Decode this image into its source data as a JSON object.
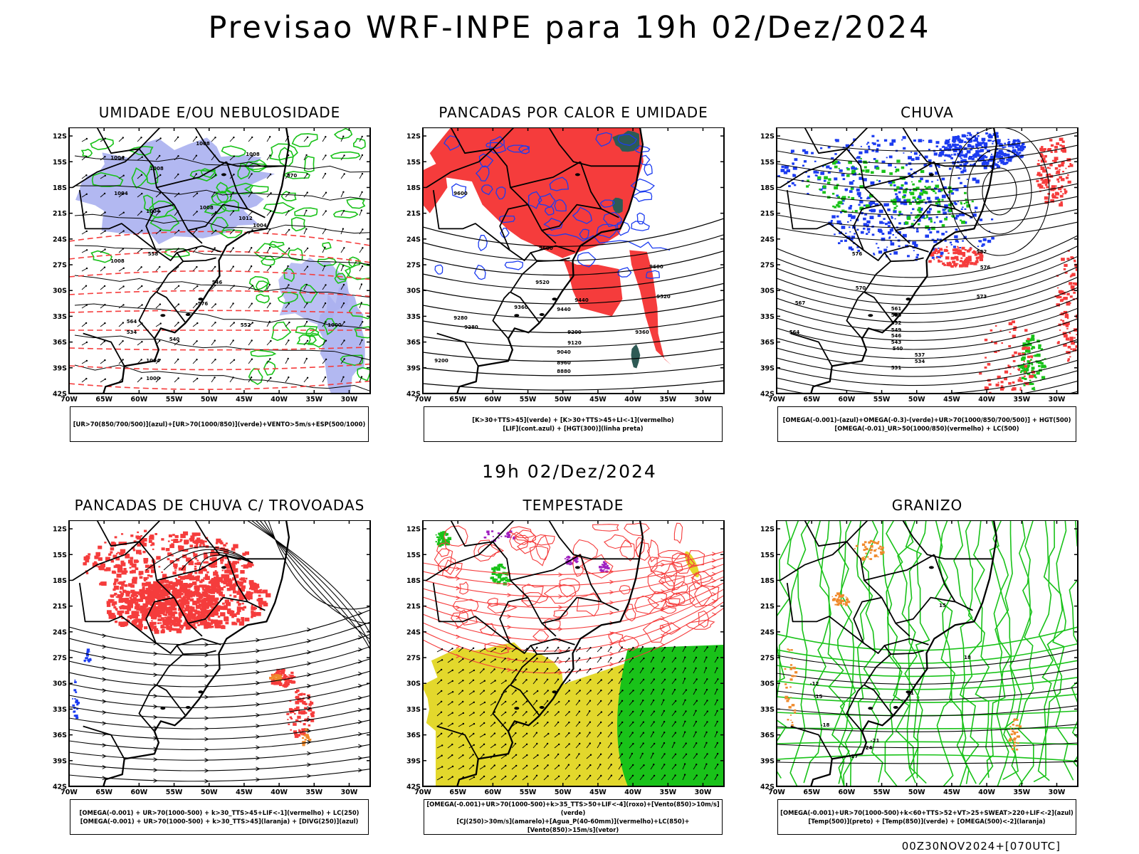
{
  "header": {
    "main_title": "Previsao WRF-INPE  para 19h 02/Dez/2024",
    "mid_title": "19h 02/Dez/2024",
    "footer": "00Z30NOV2024+[070UTC]"
  },
  "axes": {
    "lat_ticks": [
      "12S",
      "15S",
      "18S",
      "21S",
      "24S",
      "27S",
      "30S",
      "33S",
      "36S",
      "39S",
      "42S"
    ],
    "lon_ticks": [
      "70W",
      "65W",
      "60W",
      "55W",
      "50W",
      "45W",
      "40W",
      "35W",
      "30W"
    ]
  },
  "colors": {
    "blue": "#aab0f0",
    "green": "#19c219",
    "red": "#f53c3c",
    "darkteal": "#2e5a55",
    "yellow": "#e3d82c",
    "orange": "#f08a2c",
    "purple": "#a020c0",
    "contour_blue": "#1c3cf0"
  },
  "panels": [
    {
      "id": "umidade",
      "title": "UMIDADE E/OU NEBULOSIDADE",
      "legend": [
        "[UR>70(850/700/500)](azul)+[UR>70(1000/850)](verde)+VENTO>5m/s+ESP(500/1000)"
      ],
      "contour_labels": [
        "1004",
        "1008",
        "1008",
        "1004",
        "1008",
        "1004",
        "1008",
        "1012",
        "1004",
        "1008",
        "1004",
        "570",
        "576",
        "558",
        "546",
        "540",
        "534",
        "552",
        "564",
        "1000",
        "1000"
      ]
    },
    {
      "id": "pancadas-calor",
      "title": "PANCADAS POR CALOR E UMIDADE",
      "legend": [
        "[K>30+TTS>45](verde) + [K>30+TTS>45+LI<-1](vermelho)",
        "[LIF](cont.azul) + [HGT(300)](linha preta)"
      ],
      "contour_labels": [
        "9600",
        "9600",
        "9520",
        "9440",
        "9360",
        "9280",
        "9200",
        "9120",
        "9040",
        "8960",
        "8880",
        "9360",
        "9440",
        "9520",
        "9600",
        "9200",
        "9280"
      ]
    },
    {
      "id": "chuva",
      "title": "CHUVA",
      "legend": [
        "[OMEGA(-0.001)-(azul)+OMEGA(-0.3)-(verde)+UR>70(1000/850/700/500)] + HGT(500)",
        "[OMEGA(-0.01)_UR>50(1000/850)(vermelho) + LC(500)"
      ],
      "contour_labels": [
        "576",
        "570",
        "567",
        "561",
        "555",
        "552",
        "549",
        "546",
        "543",
        "540",
        "537",
        "534",
        "531",
        "582",
        "576",
        "573",
        "564"
      ]
    },
    {
      "id": "pancadas-trovoadas",
      "title": "PANCADAS DE CHUVA C/ TROVOADAS",
      "legend": [
        "[OMEGA(-0.001) + UR>70(1000-500) + k>30_TTS>45+LIF<-1](vermelho) + LC(250)",
        "[OMEGA(-0.001) + UR>70(1000-500) + k>30_TTS>45](laranja) + [DIVG(250)](azul)"
      ],
      "contour_labels": []
    },
    {
      "id": "tempestade",
      "title": "TEMPESTADE",
      "legend": [
        "[OMEGA(-0.001)+UR>70(1000-500)+k>35_TTS>50+LIF<-4](roxo)+[Vento(850)>10m/s](verde)",
        "[CJ(250)>30m/s](amarelo)+[Agua_P(40-60mm)](vermelho)+LC(850)+[Vento(850)>15m/s](vetor)"
      ],
      "contour_labels": []
    },
    {
      "id": "granizo",
      "title": "GRANIZO",
      "legend": [
        "[OMEGA(-0.001)+UR>70(1000-500)+k<60+TTS>52+VT>25+SWEAT>220+LIF<-2](azul)",
        "[Temp(500)](preto) + [Temp(850)](verde) + [OMEGA(500)<-2](laranja)"
      ],
      "contour_labels": [
        "-12",
        "-15",
        "-18",
        "-21",
        "-24",
        "-27",
        "15",
        "18",
        "21"
      ]
    }
  ]
}
